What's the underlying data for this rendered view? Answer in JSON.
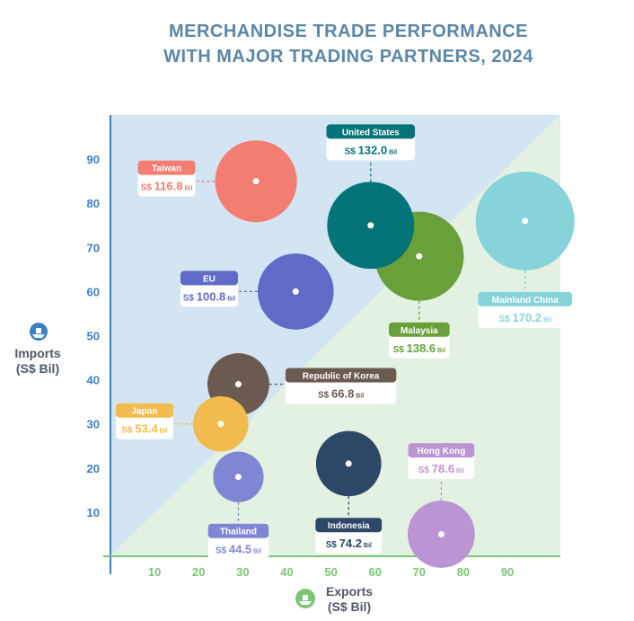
{
  "title_line1": "MERCHANDISE TRADE PERFORMANCE",
  "title_line2": "WITH MAJOR TRADING PARTNERS, 2024",
  "y_axis_title_line1": "Imports",
  "y_axis_title_line2": "(S$ Bil)",
  "x_axis_title_line1": "Exports",
  "x_axis_title_line2": "(S$ Bil)",
  "colors": {
    "title": "#5a86a8",
    "upper_region": "#d3e5f3",
    "lower_region": "#e2f1e1",
    "y_axis": "#3b7fc4",
    "x_axis": "#7cc576",
    "y_ticks": "#3b7fc4",
    "x_ticks": "#7cc576"
  },
  "chart_data": {
    "type": "scatter",
    "title": "MERCHANDISE TRADE PERFORMANCE WITH MAJOR TRADING PARTNERS, 2024",
    "xlabel": "Exports (S$ Bil)",
    "ylabel": "Imports (S$ Bil)",
    "xlim": [
      0,
      102
    ],
    "ylim": [
      0,
      100
    ],
    "x_ticks": [
      10,
      20,
      30,
      40,
      50,
      60,
      70,
      80,
      90
    ],
    "y_ticks": [
      10,
      20,
      30,
      40,
      50,
      60,
      70,
      80,
      90
    ],
    "grid": false,
    "bubble_size": "total trade",
    "currency": "S$",
    "unit": "Bil",
    "points": [
      {
        "name": "Mainland China",
        "x": 94,
        "y": 76,
        "total": "170.2",
        "value": 170.2,
        "color": "#87d3da",
        "label_pos": "below"
      },
      {
        "name": "Malaysia",
        "x": 70,
        "y": 68,
        "total": "138.6",
        "value": 138.6,
        "color": "#69a03a",
        "label_pos": "below"
      },
      {
        "name": "United States",
        "x": 59,
        "y": 75,
        "total": "132.0",
        "value": 132.0,
        "color": "#047478",
        "label_pos": "above"
      },
      {
        "name": "Taiwan",
        "x": 33,
        "y": 85,
        "total": "116.8",
        "value": 116.8,
        "color": "#f27d70",
        "label_pos": "left"
      },
      {
        "name": "EU",
        "x": 42,
        "y": 60,
        "total": "100.8",
        "value": 100.8,
        "color": "#5f6bc7",
        "label_pos": "left"
      },
      {
        "name": "Hong Kong",
        "x": 75,
        "y": 5,
        "total": "78.6",
        "value": 78.6,
        "color": "#bb94d3",
        "label_pos": "above"
      },
      {
        "name": "Indonesia",
        "x": 54,
        "y": 21,
        "total": "74.2",
        "value": 74.2,
        "color": "#2d4766",
        "label_pos": "below"
      },
      {
        "name": "Republic of Korea",
        "x": 29,
        "y": 39,
        "total": "66.8",
        "value": 66.8,
        "color": "#6b5a4f",
        "label_pos": "right"
      },
      {
        "name": "Japan",
        "x": 25,
        "y": 30,
        "total": "53.4",
        "value": 53.4,
        "color": "#f2bb4d",
        "label_pos": "left"
      },
      {
        "name": "Thailand",
        "x": 29,
        "y": 18,
        "total": "44.5",
        "value": 44.5,
        "color": "#7f86d3",
        "label_pos": "below"
      }
    ]
  }
}
